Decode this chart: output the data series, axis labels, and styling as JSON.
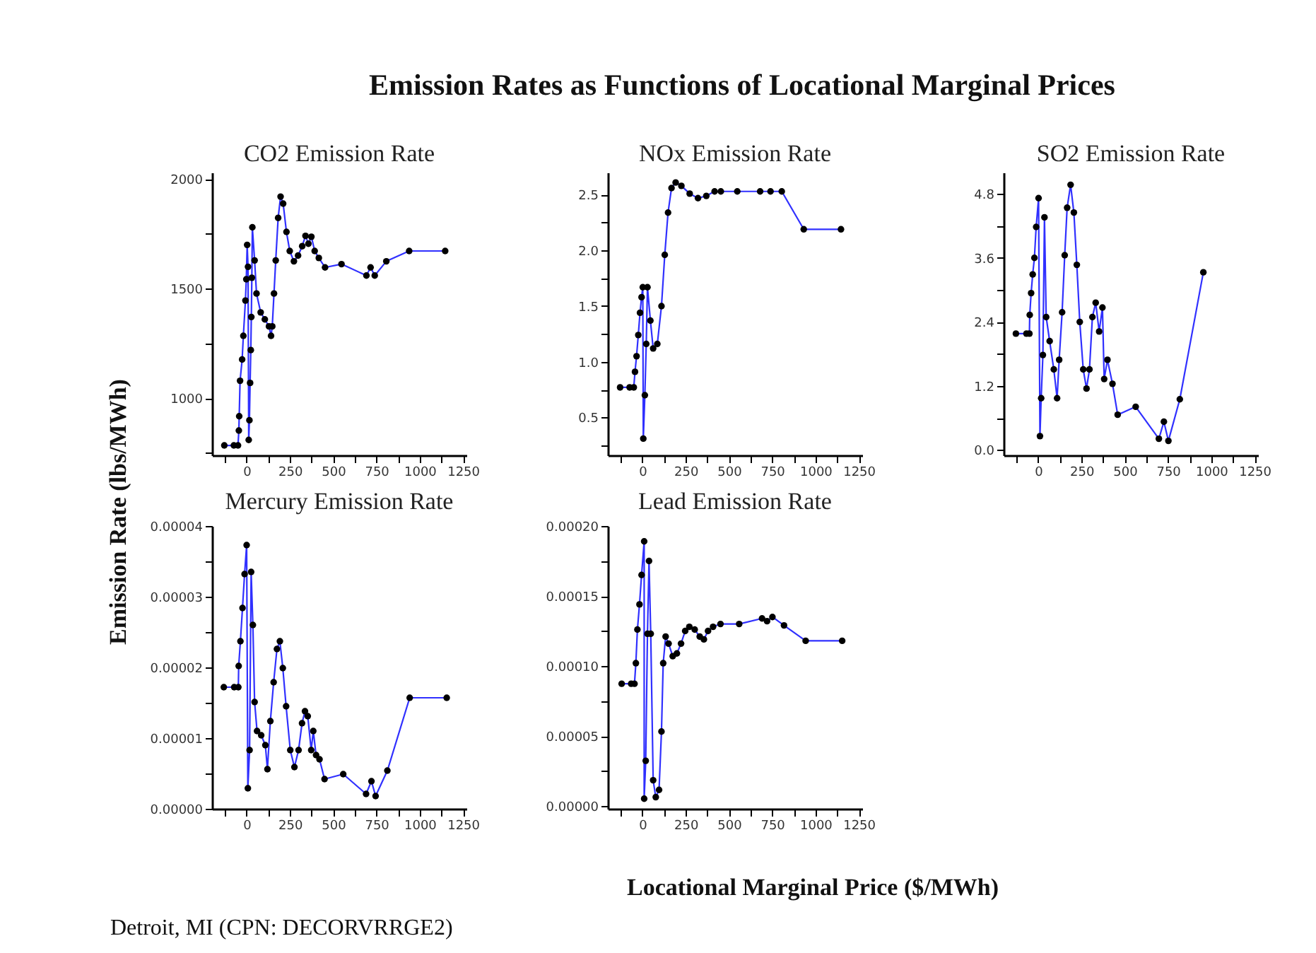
{
  "chart_data": [
    {
      "type": "other",
      "title": "Emission Rates as Functions of Locational Marginal Prices",
      "xlabel": "Locational Marginal Price ($/MWh)",
      "ylabel": "Emission Rate (lbs/MWh)",
      "annotations": [
        "Detroit, MI (CPN: DECORVRRGE2)"
      ]
    },
    {
      "type": "line",
      "title": "CO2 Emission Rate",
      "marker": "circle",
      "line_style": "solid",
      "grid": false,
      "xlim": [
        -200,
        1270
      ],
      "xticks": [
        {
          "value": -125,
          "label": null
        },
        0,
        {
          "value": 125,
          "label": null
        },
        250,
        {
          "value": 375,
          "label": null
        },
        500,
        {
          "value": 625,
          "label": null
        },
        750,
        {
          "value": 875,
          "label": null
        },
        1000,
        {
          "value": 1125,
          "label": null
        },
        1250
      ],
      "ylim": [
        740,
        2030
      ],
      "yticks": [
        {
          "value": 750,
          "label": null
        },
        1000,
        {
          "value": 1250,
          "label": null
        },
        1500,
        {
          "value": 1750,
          "label": null
        },
        2000
      ],
      "series": [
        {
          "color": "#3030ff",
          "x": [
            -129,
            -74,
            -50,
            -45,
            -43,
            -38,
            -26,
            -19,
            -7,
            -2,
            3,
            8,
            12,
            16,
            20,
            24,
            27,
            30,
            33,
            46,
            57,
            81,
            105,
            129,
            141,
            148,
            158,
            168,
            182,
            196,
            211,
            230,
            249,
            273,
            297,
            321,
            340,
            357,
            374,
            393,
            417,
            453,
            548,
            692,
            716,
            740,
            807,
            939,
            1147
          ],
          "values": [
            785,
            785,
            785,
            853,
            918,
            1080,
            1177,
            1285,
            1446,
            1543,
            1700,
            1600,
            810,
            900,
            1070,
            1220,
            1371,
            1550,
            1780,
            1629,
            1478,
            1392,
            1360,
            1328,
            1285,
            1328,
            1478,
            1629,
            1823,
            1920,
            1888,
            1759,
            1672,
            1625,
            1651,
            1694,
            1741,
            1705,
            1737,
            1672,
            1640,
            1597,
            1612,
            1560,
            1597,
            1560,
            1625,
            1672,
            1672
          ]
        }
      ]
    },
    {
      "type": "line",
      "title": "NOx Emission Rate",
      "marker": "circle",
      "line_style": "solid",
      "grid": false,
      "xlim": [
        -200,
        1270
      ],
      "xticks": [
        {
          "value": -125,
          "label": null
        },
        0,
        {
          "value": 125,
          "label": null
        },
        250,
        {
          "value": 375,
          "label": null
        },
        500,
        {
          "value": 625,
          "label": null
        },
        750,
        {
          "value": 875,
          "label": null
        },
        1000,
        {
          "value": 1125,
          "label": null
        },
        1250
      ],
      "ylim": [
        0.16,
        2.7
      ],
      "yticks": [
        {
          "value": 0.25,
          "label": null
        },
        {
          "value": 0.5,
          "label": "0.5"
        },
        {
          "value": 0.75,
          "label": null
        },
        {
          "value": 1,
          "label": "1.0"
        },
        {
          "value": 1.25,
          "label": null
        },
        {
          "value": 1.5,
          "label": "1.5"
        },
        {
          "value": 1.75,
          "label": null
        },
        {
          "value": 2,
          "label": "2.0"
        },
        {
          "value": 2.25,
          "label": null
        },
        {
          "value": 2.5,
          "label": "2.5"
        }
      ],
      "series": [
        {
          "color": "#3030ff",
          "x": [
            -129,
            -74,
            -50,
            -43,
            -34,
            -24,
            -14,
            -5,
            2,
            5,
            14,
            22,
            29,
            46,
            62,
            86,
            110,
            129,
            148,
            168,
            192,
            225,
            273,
            321,
            369,
            417,
            453,
            548,
            680,
            740,
            805,
            932,
            1147
          ],
          "values": [
            0.77,
            0.77,
            0.77,
            0.91,
            1.05,
            1.24,
            1.44,
            1.58,
            1.67,
            0.31,
            0.7,
            1.16,
            1.67,
            1.37,
            1.12,
            1.16,
            1.5,
            1.96,
            2.34,
            2.56,
            2.61,
            2.58,
            2.51,
            2.47,
            2.49,
            2.53,
            2.53,
            2.53,
            2.53,
            2.53,
            2.53,
            2.19,
            2.19
          ]
        }
      ]
    },
    {
      "type": "line",
      "title": "SO2 Emission Rate",
      "marker": "circle",
      "line_style": "solid",
      "grid": false,
      "xlim": [
        -200,
        1270
      ],
      "xticks": [
        {
          "value": -125,
          "label": null
        },
        0,
        {
          "value": 125,
          "label": null
        },
        250,
        {
          "value": 375,
          "label": null
        },
        500,
        {
          "value": 625,
          "label": null
        },
        750,
        {
          "value": 875,
          "label": null
        },
        1000,
        {
          "value": 1125,
          "label": null
        },
        1250
      ],
      "ylim": [
        -0.1,
        5.2
      ],
      "yticks": [
        {
          "value": 0,
          "label": "0.0"
        },
        {
          "value": 0.6,
          "label": null
        },
        {
          "value": 1.2,
          "label": "1.2"
        },
        {
          "value": 1.8,
          "label": null
        },
        {
          "value": 2.4,
          "label": "2.4"
        },
        {
          "value": 3,
          "label": null
        },
        {
          "value": 3.6,
          "label": "3.6"
        },
        {
          "value": 4.2,
          "label": null
        },
        {
          "value": 4.8,
          "label": "4.8"
        }
      ],
      "series": [
        {
          "color": "#3030ff",
          "x": [
            -129,
            -68,
            -51,
            -49,
            -41,
            -32,
            -22,
            -12,
            2,
            10,
            17,
            27,
            36,
            46,
            66,
            90,
            109,
            121,
            138,
            153,
            167,
            187,
            206,
            223,
            240,
            260,
            279,
            296,
            313,
            332,
            352,
            371,
            381,
            400,
            429,
            459,
            563,
            697,
            726,
            752,
            818,
            954
          ],
          "values": [
            2.18,
            2.18,
            2.18,
            2.53,
            2.94,
            3.29,
            3.6,
            4.18,
            4.72,
            0.26,
            0.97,
            1.78,
            4.36,
            2.49,
            2.04,
            1.51,
            0.97,
            1.69,
            2.58,
            3.65,
            4.54,
            4.97,
            4.45,
            3.47,
            2.4,
            1.51,
            1.15,
            1.51,
            2.49,
            2.76,
            2.22,
            2.67,
            1.33,
            1.69,
            1.24,
            0.66,
            0.81,
            0.21,
            0.53,
            0.17,
            0.95,
            3.33
          ]
        }
      ]
    },
    {
      "type": "line",
      "title": "Mercury Emission Rate",
      "marker": "circle",
      "line_style": "solid",
      "grid": false,
      "xlim": [
        -200,
        1270
      ],
      "xticks": [
        {
          "value": -125,
          "label": null
        },
        0,
        {
          "value": 125,
          "label": null
        },
        250,
        {
          "value": 375,
          "label": null
        },
        500,
        {
          "value": 625,
          "label": null
        },
        750,
        {
          "value": 875,
          "label": null
        },
        1000,
        {
          "value": 1125,
          "label": null
        },
        1250
      ],
      "ylim": [
        0,
        4e-05
      ],
      "yticks": [
        {
          "value": 0,
          "label": "0.00000"
        },
        {
          "value": 5e-06,
          "label": null
        },
        {
          "value": 1e-05,
          "label": "0.00001"
        },
        {
          "value": 1.5e-05,
          "label": null
        },
        {
          "value": 2e-05,
          "label": "0.00002"
        },
        {
          "value": 2.5e-05,
          "label": null
        },
        {
          "value": 3e-05,
          "label": "0.00003"
        },
        {
          "value": 3.5e-05,
          "label": null
        },
        {
          "value": 4e-05,
          "label": "0.00004"
        }
      ],
      "series": [
        {
          "color": "#3030ff",
          "x": [
            -132,
            -72,
            -48,
            -46,
            -36,
            -24,
            -12,
            0,
            7,
            17,
            26,
            36,
            46,
            60,
            84,
            108,
            120,
            137,
            156,
            175,
            192,
            209,
            228,
            252,
            276,
            300,
            320,
            337,
            353,
            373,
            385,
            401,
            421,
            450,
            558,
            690,
            721,
            745,
            813,
            942,
            1156
          ],
          "values": [
            1.72e-05,
            1.72e-05,
            1.72e-05,
            2.02e-05,
            2.37e-05,
            2.84e-05,
            3.32e-05,
            3.73e-05,
            2.9e-06,
            8.3e-06,
            3.35e-05,
            2.6e-05,
            1.51e-05,
            1.1e-05,
            1.04e-05,
            9e-06,
            5.6e-06,
            1.24e-05,
            1.79e-05,
            2.26e-05,
            2.37e-05,
            1.99e-05,
            1.45e-05,
            8.3e-06,
            5.9e-06,
            8.3e-06,
            1.21e-05,
            1.38e-05,
            1.31e-05,
            8.3e-06,
            1.1e-05,
            7.6e-06,
            7e-06,
            4.2e-06,
            4.9e-06,
            2.1e-06,
            3.9e-06,
            1.8e-06,
            5.4e-06,
            1.57e-05,
            1.57e-05
          ]
        }
      ]
    },
    {
      "type": "line",
      "title": "Lead Emission Rate",
      "marker": "circle",
      "line_style": "solid",
      "grid": false,
      "xlim": [
        -200,
        1270
      ],
      "xticks": [
        {
          "value": -125,
          "label": null
        },
        0,
        {
          "value": 125,
          "label": null
        },
        250,
        {
          "value": 375,
          "label": null
        },
        500,
        {
          "value": 625,
          "label": null
        },
        750,
        {
          "value": 875,
          "label": null
        },
        1000,
        {
          "value": 1125,
          "label": null
        },
        1250
      ],
      "ylim": [
        -2e-06,
        0.0002
      ],
      "yticks": [
        {
          "value": 0,
          "label": "0.00000"
        },
        {
          "value": 2.5e-05,
          "label": null
        },
        {
          "value": 5e-05,
          "label": "0.00005"
        },
        {
          "value": 7.5e-05,
          "label": null
        },
        {
          "value": 0.0001,
          "label": "0.00010"
        },
        {
          "value": 0.000125,
          "label": null
        },
        {
          "value": 0.00015,
          "label": "0.00015"
        },
        {
          "value": 0.000175,
          "label": null
        },
        {
          "value": 0.0002,
          "label": "0.00020"
        }
      ],
      "series": [
        {
          "color": "#3030ff",
          "x": [
            -120,
            -65,
            -46,
            -38,
            -29,
            -17,
            -5,
            10,
            10,
            19,
            29,
            38,
            48,
            62,
            77,
            96,
            110,
            120,
            134,
            151,
            175,
            199,
            223,
            247,
            271,
            302,
            331,
            355,
            379,
            408,
            451,
            559,
            691,
            720,
            751,
            818,
            943,
            1154
          ],
          "values": [
            8.73e-05,
            8.73e-05,
            8.73e-05,
            0.000102,
            0.000126,
            0.000144,
            0.000165,
            0.000189,
            5.2e-06,
            3.23e-05,
            0.000123,
            0.000175,
            0.000123,
            1.84e-05,
            6.3e-06,
            1.15e-05,
            5.32e-05,
            0.000102,
            0.000121,
            0.000116,
            0.000107,
            0.000109,
            0.000116,
            0.000125,
            0.000128,
            0.000126,
            0.000121,
            0.000119,
            0.000125,
            0.000128,
            0.00013,
            0.00013,
            0.000134,
            0.000132,
            0.000135,
            0.000129,
            0.000118,
            0.000118
          ]
        }
      ]
    }
  ]
}
